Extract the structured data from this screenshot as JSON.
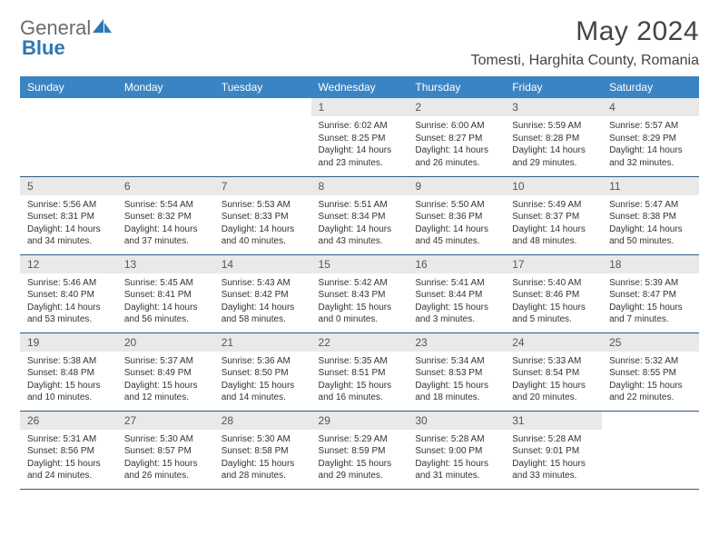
{
  "brand": {
    "text1": "General",
    "text2": "Blue"
  },
  "title": "May 2024",
  "location": "Tomesti, Harghita County, Romania",
  "colors": {
    "header_bg": "#3b84c4",
    "header_fg": "#ffffff",
    "daynum_bg": "#e9e9e9",
    "border": "#2a5a8a"
  },
  "weekdays": [
    "Sunday",
    "Monday",
    "Tuesday",
    "Wednesday",
    "Thursday",
    "Friday",
    "Saturday"
  ],
  "weeks": [
    [
      {
        "empty": true
      },
      {
        "empty": true
      },
      {
        "empty": true
      },
      {
        "n": "1",
        "sr": "6:02 AM",
        "ss": "8:25 PM",
        "dl": "14 hours and 23 minutes."
      },
      {
        "n": "2",
        "sr": "6:00 AM",
        "ss": "8:27 PM",
        "dl": "14 hours and 26 minutes."
      },
      {
        "n": "3",
        "sr": "5:59 AM",
        "ss": "8:28 PM",
        "dl": "14 hours and 29 minutes."
      },
      {
        "n": "4",
        "sr": "5:57 AM",
        "ss": "8:29 PM",
        "dl": "14 hours and 32 minutes."
      }
    ],
    [
      {
        "n": "5",
        "sr": "5:56 AM",
        "ss": "8:31 PM",
        "dl": "14 hours and 34 minutes."
      },
      {
        "n": "6",
        "sr": "5:54 AM",
        "ss": "8:32 PM",
        "dl": "14 hours and 37 minutes."
      },
      {
        "n": "7",
        "sr": "5:53 AM",
        "ss": "8:33 PM",
        "dl": "14 hours and 40 minutes."
      },
      {
        "n": "8",
        "sr": "5:51 AM",
        "ss": "8:34 PM",
        "dl": "14 hours and 43 minutes."
      },
      {
        "n": "9",
        "sr": "5:50 AM",
        "ss": "8:36 PM",
        "dl": "14 hours and 45 minutes."
      },
      {
        "n": "10",
        "sr": "5:49 AM",
        "ss": "8:37 PM",
        "dl": "14 hours and 48 minutes."
      },
      {
        "n": "11",
        "sr": "5:47 AM",
        "ss": "8:38 PM",
        "dl": "14 hours and 50 minutes."
      }
    ],
    [
      {
        "n": "12",
        "sr": "5:46 AM",
        "ss": "8:40 PM",
        "dl": "14 hours and 53 minutes."
      },
      {
        "n": "13",
        "sr": "5:45 AM",
        "ss": "8:41 PM",
        "dl": "14 hours and 56 minutes."
      },
      {
        "n": "14",
        "sr": "5:43 AM",
        "ss": "8:42 PM",
        "dl": "14 hours and 58 minutes."
      },
      {
        "n": "15",
        "sr": "5:42 AM",
        "ss": "8:43 PM",
        "dl": "15 hours and 0 minutes."
      },
      {
        "n": "16",
        "sr": "5:41 AM",
        "ss": "8:44 PM",
        "dl": "15 hours and 3 minutes."
      },
      {
        "n": "17",
        "sr": "5:40 AM",
        "ss": "8:46 PM",
        "dl": "15 hours and 5 minutes."
      },
      {
        "n": "18",
        "sr": "5:39 AM",
        "ss": "8:47 PM",
        "dl": "15 hours and 7 minutes."
      }
    ],
    [
      {
        "n": "19",
        "sr": "5:38 AM",
        "ss": "8:48 PM",
        "dl": "15 hours and 10 minutes."
      },
      {
        "n": "20",
        "sr": "5:37 AM",
        "ss": "8:49 PM",
        "dl": "15 hours and 12 minutes."
      },
      {
        "n": "21",
        "sr": "5:36 AM",
        "ss": "8:50 PM",
        "dl": "15 hours and 14 minutes."
      },
      {
        "n": "22",
        "sr": "5:35 AM",
        "ss": "8:51 PM",
        "dl": "15 hours and 16 minutes."
      },
      {
        "n": "23",
        "sr": "5:34 AM",
        "ss": "8:53 PM",
        "dl": "15 hours and 18 minutes."
      },
      {
        "n": "24",
        "sr": "5:33 AM",
        "ss": "8:54 PM",
        "dl": "15 hours and 20 minutes."
      },
      {
        "n": "25",
        "sr": "5:32 AM",
        "ss": "8:55 PM",
        "dl": "15 hours and 22 minutes."
      }
    ],
    [
      {
        "n": "26",
        "sr": "5:31 AM",
        "ss": "8:56 PM",
        "dl": "15 hours and 24 minutes."
      },
      {
        "n": "27",
        "sr": "5:30 AM",
        "ss": "8:57 PM",
        "dl": "15 hours and 26 minutes."
      },
      {
        "n": "28",
        "sr": "5:30 AM",
        "ss": "8:58 PM",
        "dl": "15 hours and 28 minutes."
      },
      {
        "n": "29",
        "sr": "5:29 AM",
        "ss": "8:59 PM",
        "dl": "15 hours and 29 minutes."
      },
      {
        "n": "30",
        "sr": "5:28 AM",
        "ss": "9:00 PM",
        "dl": "15 hours and 31 minutes."
      },
      {
        "n": "31",
        "sr": "5:28 AM",
        "ss": "9:01 PM",
        "dl": "15 hours and 33 minutes."
      },
      {
        "empty": true
      }
    ]
  ],
  "labels": {
    "sunrise": "Sunrise:",
    "sunset": "Sunset:",
    "daylight": "Daylight:"
  }
}
